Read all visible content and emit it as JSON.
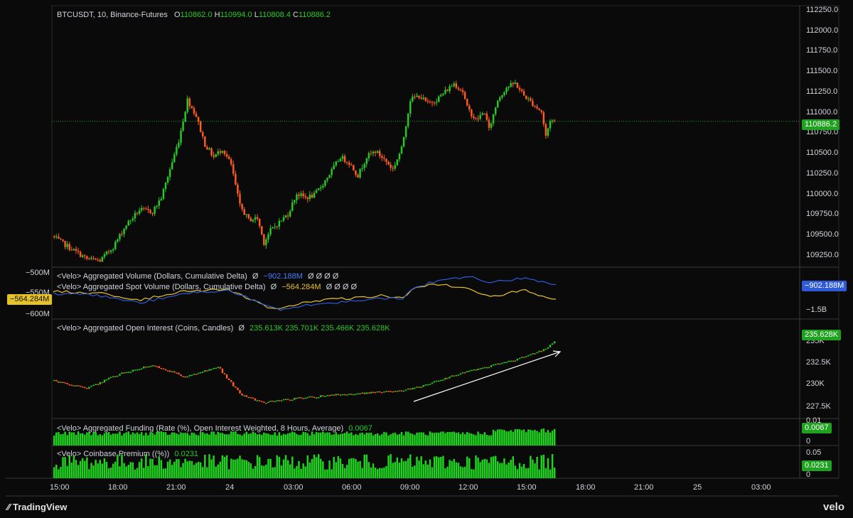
{
  "header": {
    "symbol": "BTCUSDT, 10, Binance-Futures",
    "o_label": "O",
    "o": "110862.0",
    "h_label": "H",
    "h": "110994.0",
    "l_label": "L",
    "l": "110808.4",
    "c_label": "C",
    "c": "110886.2"
  },
  "colors": {
    "up": "#26c926",
    "down": "#ff5a1f",
    "blue": "#2f5bd8",
    "yellow": "#e6c229",
    "grid": "#1e1e1e"
  },
  "price_panel": {
    "current": "110886.2",
    "ticks": [
      "112250.0",
      "112000.0",
      "111750.0",
      "111500.0",
      "111250.0",
      "111000.0",
      "110750.0",
      "110500.0",
      "110250.0",
      "110000.0",
      "109750.0",
      "109500.0",
      "109250.0"
    ]
  },
  "volume_panel": {
    "label1": "<Velo> Aggregated Volume (Dollars, Cumulative Delta)",
    "value1": "−902.188M",
    "label2": "<Velo> Aggregated Spot Volume (Dollars, Cumulative Delta)",
    "value2": "−564.284M",
    "symbols": "Ø",
    "extra": "Ø Ø Ø Ø",
    "left_ticks": [
      "−500M",
      "−550M",
      "−600M"
    ],
    "right_ticks": [
      "−1.5B"
    ],
    "tag_left": "−564.284M",
    "tag_right": "−902.188M"
  },
  "oi_panel": {
    "label": "<Velo> Aggregated Open Interest (Coins, Candles)",
    "symbol": "Ø",
    "values": "235.613K  235.701K  235.466K  235.628K",
    "ticks": [
      "235K",
      "232.5K",
      "230K",
      "227.5K"
    ],
    "tag": "235.628K"
  },
  "funding_panel": {
    "label": "<Velo> Aggregated Funding (Rate (%), Open Interest Weighted, 8 Hours, Average)",
    "value": "0.0067",
    "ticks": [
      "0.01",
      "0"
    ],
    "tag": "0.0067"
  },
  "premium_panel": {
    "label": "<Velo> Coinbase Premium ((%))",
    "value": "0.0231",
    "ticks": [
      "0.05",
      "0"
    ],
    "tag": "0.0231"
  },
  "time_axis": [
    "15:00",
    "18:00",
    "21:00",
    "24",
    "03:00",
    "06:00",
    "09:00",
    "12:00",
    "15:00",
    "18:00",
    "21:00",
    "25",
    "03:00"
  ],
  "branding": {
    "tradingview": "TradingView",
    "velo": "velo"
  },
  "chart_data": {
    "type": "candlestick",
    "symbol": "BTCUSDT",
    "interval": "10",
    "x_labels": [
      "15:00",
      "18:00",
      "21:00",
      "24",
      "03:00",
      "06:00",
      "09:00",
      "12:00",
      "15:00",
      "18:00",
      "21:00",
      "25",
      "03:00"
    ],
    "ylim": [
      109100,
      112300
    ],
    "price_path": [
      [
        0,
        109480
      ],
      [
        8,
        109340
      ],
      [
        16,
        109200
      ],
      [
        22,
        109180
      ],
      [
        28,
        109350
      ],
      [
        34,
        109620
      ],
      [
        40,
        109800
      ],
      [
        46,
        109780
      ],
      [
        50,
        109950
      ],
      [
        54,
        110300
      ],
      [
        58,
        110650
      ],
      [
        62,
        111150
      ],
      [
        66,
        110950
      ],
      [
        70,
        110600
      ],
      [
        74,
        110450
      ],
      [
        78,
        110550
      ],
      [
        82,
        110350
      ],
      [
        86,
        109850
      ],
      [
        90,
        109680
      ],
      [
        94,
        109700
      ],
      [
        97,
        109400
      ],
      [
        100,
        109550
      ],
      [
        104,
        109650
      ],
      [
        108,
        109750
      ],
      [
        112,
        110000
      ],
      [
        116,
        109950
      ],
      [
        120,
        109980
      ],
      [
        124,
        110120
      ],
      [
        128,
        110280
      ],
      [
        132,
        110450
      ],
      [
        136,
        110380
      ],
      [
        140,
        110220
      ],
      [
        144,
        110450
      ],
      [
        148,
        110520
      ],
      [
        152,
        110420
      ],
      [
        156,
        110300
      ],
      [
        160,
        110550
      ],
      [
        164,
        111150
      ],
      [
        168,
        111200
      ],
      [
        172,
        111100
      ],
      [
        176,
        111150
      ],
      [
        180,
        111250
      ],
      [
        184,
        111350
      ],
      [
        188,
        111250
      ],
      [
        190,
        111050
      ],
      [
        194,
        110900
      ],
      [
        198,
        111000
      ],
      [
        200,
        110780
      ],
      [
        204,
        111150
      ],
      [
        208,
        111300
      ],
      [
        212,
        111350
      ],
      [
        216,
        111200
      ],
      [
        220,
        111100
      ],
      [
        224,
        111000
      ],
      [
        226,
        110700
      ],
      [
        228,
        110900
      ],
      [
        230,
        110886
      ]
    ],
    "annotations": [
      "upward arrow on open interest trend"
    ]
  }
}
